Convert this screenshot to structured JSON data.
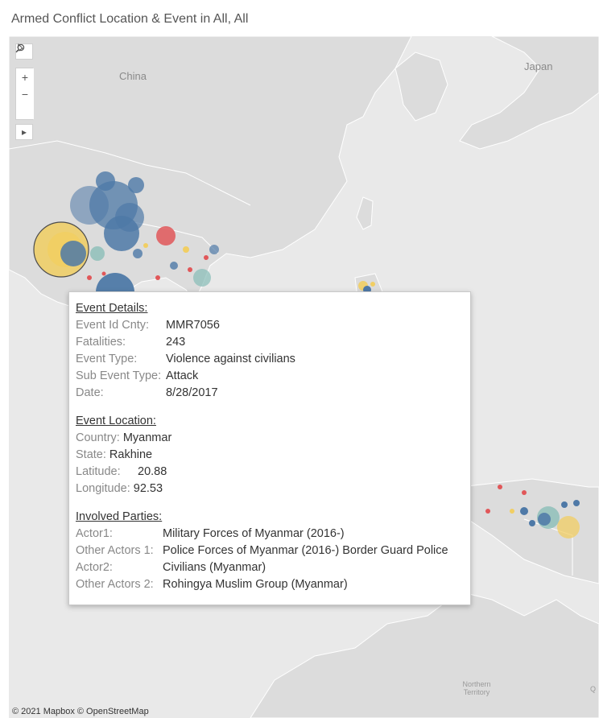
{
  "title": "Armed Conflict Location & Event in All, All",
  "map": {
    "labels": {
      "china": "China",
      "japan": "Japan",
      "northern_territory": "Northern\nTerritory",
      "partial_q": "Q"
    },
    "copyright": "© 2021 Mapbox © OpenStreetMap",
    "colors": {
      "land": "#dcdcdc",
      "water": "#e9e9e9",
      "blue": "#4e79a7",
      "yellow": "#f1ce63",
      "red": "#e15759",
      "teal": "#86bcb6"
    }
  },
  "toolbar": {
    "search_icon": "search-icon",
    "zoom_in": "+",
    "zoom_out": "−",
    "pin_icon": "pin-icon",
    "expand_icon": "▸"
  },
  "tooltip": {
    "event_details": {
      "heading": "Event Details:",
      "rows": [
        {
          "label": "Event Id Cnty:",
          "value": "MMR7056"
        },
        {
          "label": "Fatalities:",
          "value": "243"
        },
        {
          "label": "Event Type:",
          "value": "Violence against civilians"
        },
        {
          "label": "Sub Event Type:",
          "value": "Attack"
        },
        {
          "label": "Date:",
          "value": "8/28/2017"
        }
      ]
    },
    "event_location": {
      "heading": "Event Location:",
      "country_label": "Country:",
      "country": "Myanmar",
      "state_label": "State:",
      "state": "Rakhine",
      "latitude_label": "Latitude:",
      "latitude": "20.88",
      "longitude_label": "Longitude:",
      "longitude": "92.53"
    },
    "involved_parties": {
      "heading": "Involved Parties:",
      "rows": [
        {
          "label": "Actor1:",
          "value": "Military Forces of Myanmar (2016-)"
        },
        {
          "label": "Other Actors 1:",
          "value": "Police Forces of Myanmar (2016-) Border Guard Police"
        },
        {
          "label": "Actor2:",
          "value": "Civilians (Myanmar)"
        },
        {
          "label": "Other Actors 2:",
          "value": "Rohingya Muslim Group (Myanmar)"
        }
      ]
    }
  }
}
